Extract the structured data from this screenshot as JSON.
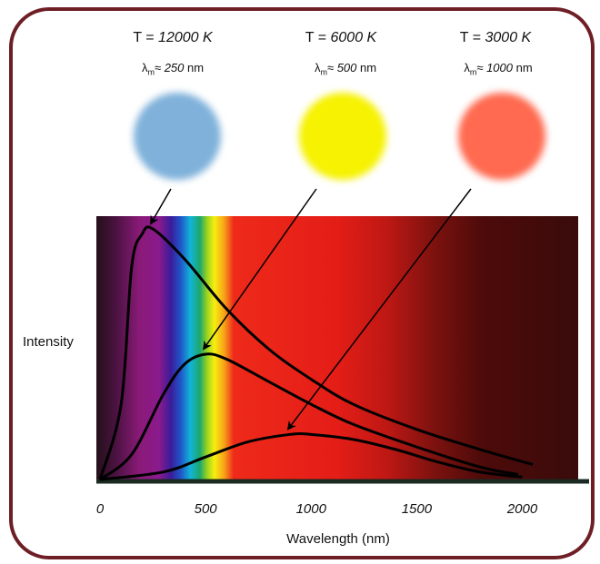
{
  "stars": [
    {
      "temp_prefix": "T = ",
      "temp_value": "12000 K",
      "lambda_symbol": "λ",
      "lambda_sub": "m",
      "lambda_approx": "≈ ",
      "lambda_value": "250",
      "lambda_unit": " nm",
      "color": "#7fb1da",
      "peak_nm": 250
    },
    {
      "temp_prefix": "T = ",
      "temp_value": "6000 K",
      "lambda_symbol": "λ",
      "lambda_sub": "m",
      "lambda_approx": "≈ ",
      "lambda_value": "500",
      "lambda_unit": " nm",
      "color": "#f6f201",
      "peak_nm": 500
    },
    {
      "temp_prefix": "T = ",
      "temp_value": "3000 K",
      "lambda_symbol": "λ",
      "lambda_sub": "m",
      "lambda_approx": "≈ ",
      "lambda_value": "1000",
      "lambda_unit": " nm",
      "color": "#ff6a50",
      "peak_nm": 1000
    }
  ],
  "chart_data": {
    "type": "line",
    "xlabel": "Wavelength (nm)",
    "ylabel": "Intensity",
    "xlim": [
      0,
      2200
    ],
    "xticks": [
      0,
      500,
      1000,
      1500,
      2000
    ],
    "grid": false,
    "series": [
      {
        "values": [
          [
            0,
            0
          ],
          [
            100,
            0.3
          ],
          [
            150,
            0.85
          ],
          [
            200,
            0.98
          ],
          [
            250,
            1.0
          ],
          [
            400,
            0.88
          ],
          [
            600,
            0.68
          ],
          [
            800,
            0.52
          ],
          [
            1000,
            0.4
          ],
          [
            1200,
            0.3
          ],
          [
            1500,
            0.2
          ],
          [
            1800,
            0.12
          ],
          [
            2050,
            0.06
          ]
        ]
      },
      {
        "values": [
          [
            0,
            0
          ],
          [
            150,
            0.1
          ],
          [
            300,
            0.34
          ],
          [
            400,
            0.46
          ],
          [
            500,
            0.5
          ],
          [
            600,
            0.48
          ],
          [
            800,
            0.39
          ],
          [
            1000,
            0.3
          ],
          [
            1200,
            0.22
          ],
          [
            1500,
            0.13
          ],
          [
            1800,
            0.05
          ],
          [
            1980,
            0.02
          ]
        ]
      },
      {
        "values": [
          [
            0,
            0
          ],
          [
            300,
            0.03
          ],
          [
            500,
            0.09
          ],
          [
            700,
            0.15
          ],
          [
            900,
            0.18
          ],
          [
            1000,
            0.18
          ],
          [
            1200,
            0.16
          ],
          [
            1400,
            0.12
          ],
          [
            1600,
            0.07
          ],
          [
            1800,
            0.03
          ],
          [
            2000,
            0.01
          ]
        ]
      }
    ]
  }
}
